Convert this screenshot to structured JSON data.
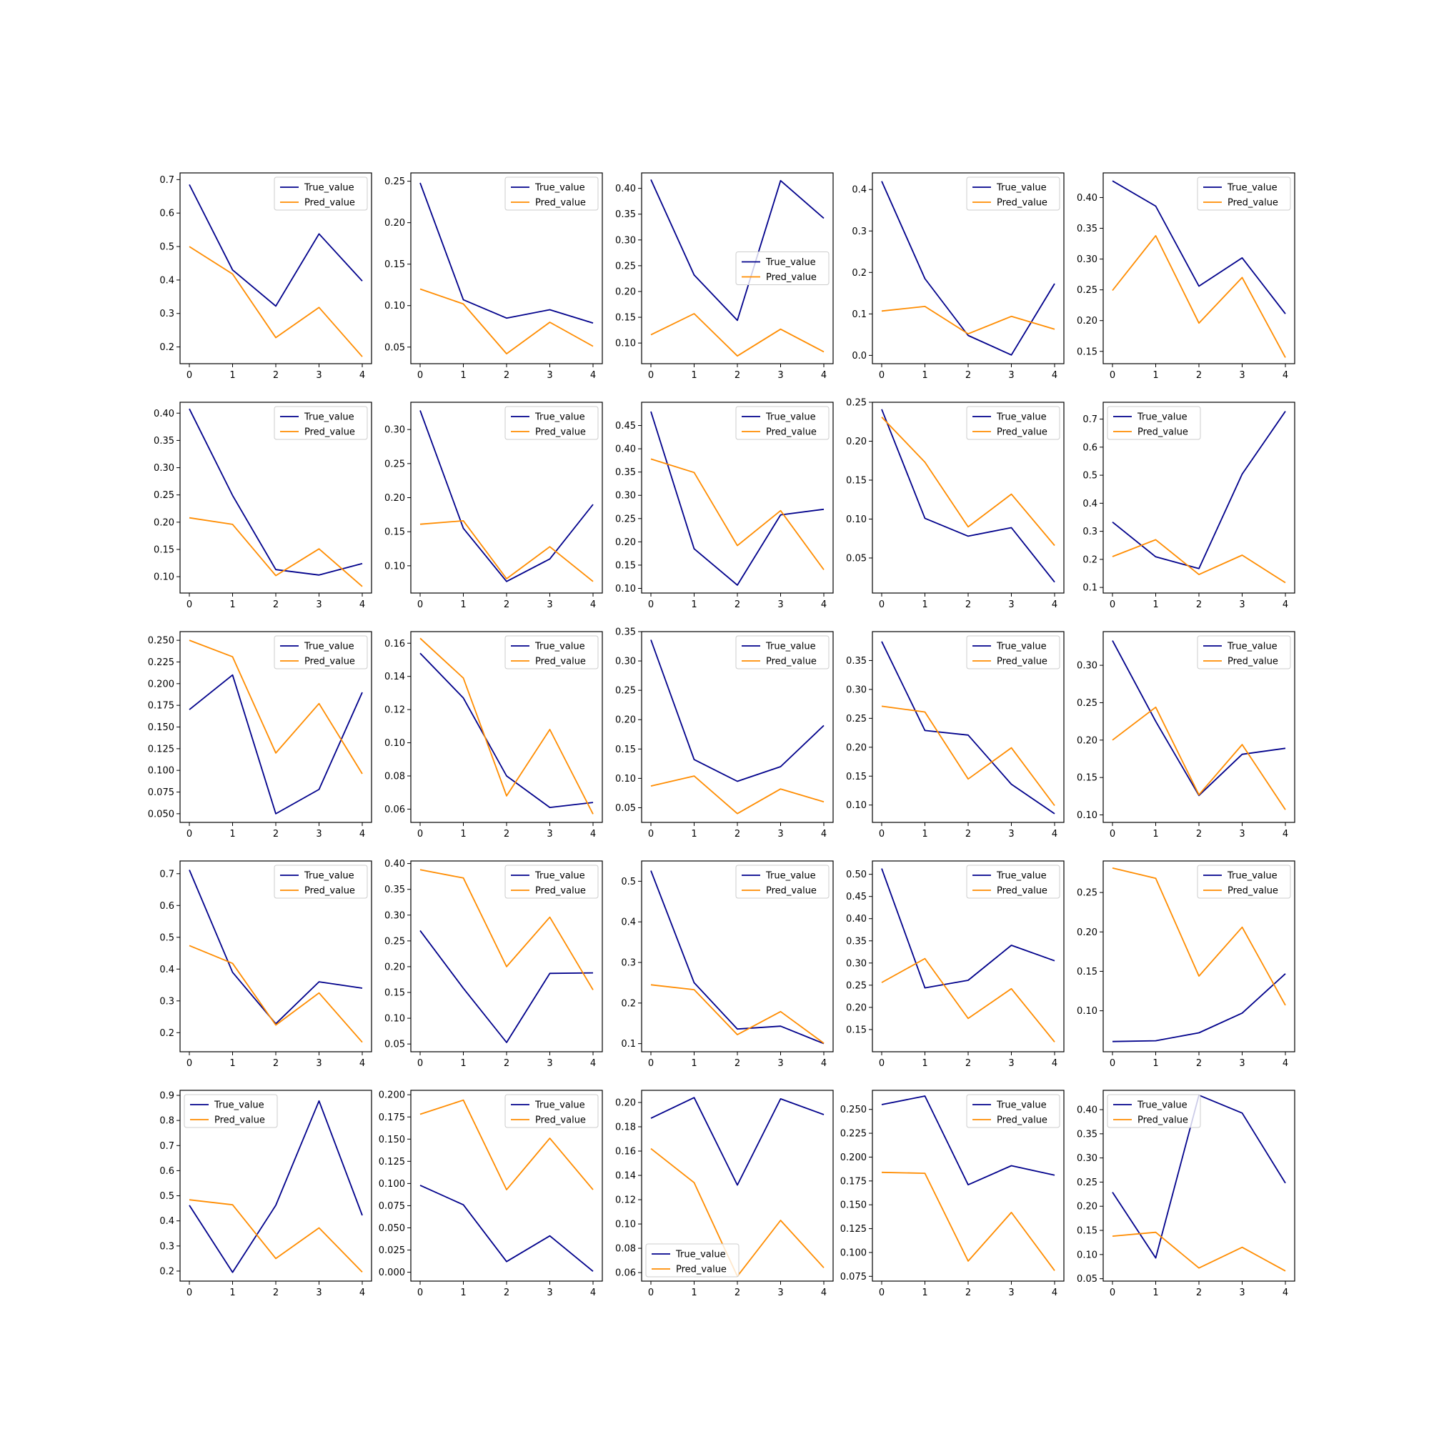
{
  "colors": {
    "true": "#00008b",
    "pred": "#ff8c00"
  },
  "legend_labels": {
    "true": "True_value",
    "pred": "Pred_value"
  },
  "chart_data": [
    {
      "type": "line",
      "x": [
        0,
        1,
        2,
        3,
        4
      ],
      "ylim": [
        0.15,
        0.72
      ],
      "yticks": [
        0.2,
        0.3,
        0.4,
        0.5,
        0.6,
        0.7
      ],
      "decimals": 1,
      "legend": "upper-right",
      "series": [
        {
          "name": "True_value",
          "values": [
            0.685,
            0.43,
            0.322,
            0.538,
            0.397
          ]
        },
        {
          "name": "Pred_value",
          "values": [
            0.5,
            0.418,
            0.228,
            0.318,
            0.171
          ]
        }
      ]
    },
    {
      "type": "line",
      "x": [
        0,
        1,
        2,
        3,
        4
      ],
      "ylim": [
        0.03,
        0.26
      ],
      "yticks": [
        0.05,
        0.1,
        0.15,
        0.2,
        0.25
      ],
      "decimals": 2,
      "legend": "upper-right",
      "series": [
        {
          "name": "True_value",
          "values": [
            0.248,
            0.107,
            0.085,
            0.095,
            0.079
          ]
        },
        {
          "name": "Pred_value",
          "values": [
            0.12,
            0.102,
            0.042,
            0.08,
            0.051
          ]
        }
      ]
    },
    {
      "type": "line",
      "x": [
        0,
        1,
        2,
        3,
        4
      ],
      "ylim": [
        0.06,
        0.43
      ],
      "yticks": [
        0.1,
        0.15,
        0.2,
        0.25,
        0.3,
        0.35,
        0.4
      ],
      "decimals": 2,
      "legend": "center-right",
      "series": [
        {
          "name": "True_value",
          "values": [
            0.417,
            0.232,
            0.144,
            0.415,
            0.342
          ]
        },
        {
          "name": "Pred_value",
          "values": [
            0.116,
            0.157,
            0.075,
            0.127,
            0.083
          ]
        }
      ]
    },
    {
      "type": "line",
      "x": [
        0,
        1,
        2,
        3,
        4
      ],
      "ylim": [
        -0.02,
        0.44
      ],
      "yticks": [
        0.0,
        0.1,
        0.2,
        0.3,
        0.4
      ],
      "decimals": 1,
      "legend": "upper-right",
      "series": [
        {
          "name": "True_value",
          "values": [
            0.42,
            0.185,
            0.048,
            0.001,
            0.173
          ]
        },
        {
          "name": "Pred_value",
          "values": [
            0.107,
            0.118,
            0.052,
            0.094,
            0.063
          ]
        }
      ]
    },
    {
      "type": "line",
      "x": [
        0,
        1,
        2,
        3,
        4
      ],
      "ylim": [
        0.13,
        0.44
      ],
      "yticks": [
        0.15,
        0.2,
        0.25,
        0.3,
        0.35,
        0.4
      ],
      "decimals": 2,
      "legend": "upper-right",
      "series": [
        {
          "name": "True_value",
          "values": [
            0.427,
            0.386,
            0.256,
            0.302,
            0.211
          ]
        },
        {
          "name": "Pred_value",
          "values": [
            0.249,
            0.338,
            0.196,
            0.27,
            0.14
          ]
        }
      ]
    },
    {
      "type": "line",
      "x": [
        0,
        1,
        2,
        3,
        4
      ],
      "ylim": [
        0.07,
        0.42
      ],
      "yticks": [
        0.1,
        0.15,
        0.2,
        0.25,
        0.3,
        0.35,
        0.4
      ],
      "decimals": 2,
      "legend": "upper-right",
      "series": [
        {
          "name": "True_value",
          "values": [
            0.408,
            0.249,
            0.113,
            0.103,
            0.124
          ]
        },
        {
          "name": "Pred_value",
          "values": [
            0.208,
            0.196,
            0.102,
            0.151,
            0.082
          ]
        }
      ]
    },
    {
      "type": "line",
      "x": [
        0,
        1,
        2,
        3,
        4
      ],
      "ylim": [
        0.06,
        0.34
      ],
      "yticks": [
        0.1,
        0.15,
        0.2,
        0.25,
        0.3
      ],
      "decimals": 2,
      "legend": "upper-right",
      "series": [
        {
          "name": "True_value",
          "values": [
            0.328,
            0.155,
            0.077,
            0.11,
            0.19
          ]
        },
        {
          "name": "Pred_value",
          "values": [
            0.161,
            0.166,
            0.081,
            0.128,
            0.077
          ]
        }
      ]
    },
    {
      "type": "line",
      "x": [
        0,
        1,
        2,
        3,
        4
      ],
      "ylim": [
        0.09,
        0.5
      ],
      "yticks": [
        0.1,
        0.15,
        0.2,
        0.25,
        0.3,
        0.35,
        0.4,
        0.45
      ],
      "decimals": 2,
      "legend": "upper-right",
      "series": [
        {
          "name": "True_value",
          "values": [
            0.48,
            0.185,
            0.107,
            0.258,
            0.27
          ]
        },
        {
          "name": "Pred_value",
          "values": [
            0.378,
            0.349,
            0.192,
            0.267,
            0.14
          ]
        }
      ]
    },
    {
      "type": "line",
      "x": [
        0,
        1,
        2,
        3,
        4
      ],
      "ylim": [
        0.005,
        0.25
      ],
      "yticks": [
        0.05,
        0.1,
        0.15,
        0.2,
        0.25
      ],
      "decimals": 2,
      "legend": "upper-right",
      "series": [
        {
          "name": "True_value",
          "values": [
            0.241,
            0.101,
            0.078,
            0.089,
            0.019
          ]
        },
        {
          "name": "Pred_value",
          "values": [
            0.231,
            0.173,
            0.09,
            0.132,
            0.066
          ]
        }
      ]
    },
    {
      "type": "line",
      "x": [
        0,
        1,
        2,
        3,
        4
      ],
      "ylim": [
        0.08,
        0.76
      ],
      "yticks": [
        0.1,
        0.2,
        0.3,
        0.4,
        0.5,
        0.6,
        0.7
      ],
      "decimals": 1,
      "legend": "upper-left",
      "series": [
        {
          "name": "True_value",
          "values": [
            0.333,
            0.209,
            0.167,
            0.504,
            0.728
          ]
        },
        {
          "name": "Pred_value",
          "values": [
            0.21,
            0.27,
            0.146,
            0.215,
            0.117
          ]
        }
      ]
    },
    {
      "type": "line",
      "x": [
        0,
        1,
        2,
        3,
        4
      ],
      "ylim": [
        0.04,
        0.26
      ],
      "yticks": [
        0.05,
        0.075,
        0.1,
        0.125,
        0.15,
        0.175,
        0.2,
        0.225,
        0.25
      ],
      "decimals": 3,
      "legend": "upper-right",
      "series": [
        {
          "name": "True_value",
          "values": [
            0.17,
            0.21,
            0.05,
            0.078,
            0.19
          ]
        },
        {
          "name": "Pred_value",
          "values": [
            0.25,
            0.231,
            0.12,
            0.177,
            0.096
          ]
        }
      ]
    },
    {
      "type": "line",
      "x": [
        0,
        1,
        2,
        3,
        4
      ],
      "ylim": [
        0.052,
        0.167
      ],
      "yticks": [
        0.06,
        0.08,
        0.1,
        0.12,
        0.14,
        0.16
      ],
      "decimals": 2,
      "legend": "upper-right",
      "series": [
        {
          "name": "True_value",
          "values": [
            0.154,
            0.127,
            0.08,
            0.061,
            0.064
          ]
        },
        {
          "name": "Pred_value",
          "values": [
            0.163,
            0.139,
            0.068,
            0.108,
            0.057
          ]
        }
      ]
    },
    {
      "type": "line",
      "x": [
        0,
        1,
        2,
        3,
        4
      ],
      "ylim": [
        0.025,
        0.35
      ],
      "yticks": [
        0.05,
        0.1,
        0.15,
        0.2,
        0.25,
        0.3,
        0.35
      ],
      "decimals": 2,
      "legend": "upper-right",
      "series": [
        {
          "name": "True_value",
          "values": [
            0.336,
            0.132,
            0.095,
            0.12,
            0.19
          ]
        },
        {
          "name": "Pred_value",
          "values": [
            0.087,
            0.104,
            0.04,
            0.082,
            0.06
          ]
        }
      ]
    },
    {
      "type": "line",
      "x": [
        0,
        1,
        2,
        3,
        4
      ],
      "ylim": [
        0.07,
        0.4
      ],
      "yticks": [
        0.1,
        0.15,
        0.2,
        0.25,
        0.3,
        0.35
      ],
      "decimals": 2,
      "legend": "upper-right",
      "series": [
        {
          "name": "True_value",
          "values": [
            0.383,
            0.229,
            0.221,
            0.136,
            0.085
          ]
        },
        {
          "name": "Pred_value",
          "values": [
            0.271,
            0.261,
            0.145,
            0.199,
            0.099
          ]
        }
      ]
    },
    {
      "type": "line",
      "x": [
        0,
        1,
        2,
        3,
        4
      ],
      "ylim": [
        0.09,
        0.345
      ],
      "yticks": [
        0.1,
        0.15,
        0.2,
        0.25,
        0.3
      ],
      "decimals": 2,
      "legend": "upper-right",
      "series": [
        {
          "name": "True_value",
          "values": [
            0.333,
            0.225,
            0.126,
            0.181,
            0.189
          ]
        },
        {
          "name": "Pred_value",
          "values": [
            0.2,
            0.244,
            0.127,
            0.194,
            0.107
          ]
        }
      ]
    },
    {
      "type": "line",
      "x": [
        0,
        1,
        2,
        3,
        4
      ],
      "ylim": [
        0.14,
        0.74
      ],
      "yticks": [
        0.2,
        0.3,
        0.4,
        0.5,
        0.6,
        0.7
      ],
      "decimals": 1,
      "legend": "upper-right",
      "series": [
        {
          "name": "True_value",
          "values": [
            0.712,
            0.39,
            0.228,
            0.36,
            0.34
          ]
        },
        {
          "name": "Pred_value",
          "values": [
            0.474,
            0.418,
            0.224,
            0.325,
            0.17
          ]
        }
      ]
    },
    {
      "type": "line",
      "x": [
        0,
        1,
        2,
        3,
        4
      ],
      "ylim": [
        0.035,
        0.405
      ],
      "yticks": [
        0.05,
        0.1,
        0.15,
        0.2,
        0.25,
        0.3,
        0.35,
        0.4
      ],
      "decimals": 2,
      "legend": "upper-right",
      "series": [
        {
          "name": "True_value",
          "values": [
            0.27,
            0.158,
            0.053,
            0.187,
            0.188
          ]
        },
        {
          "name": "Pred_value",
          "values": [
            0.388,
            0.372,
            0.2,
            0.296,
            0.155
          ]
        }
      ]
    },
    {
      "type": "line",
      "x": [
        0,
        1,
        2,
        3,
        4
      ],
      "ylim": [
        0.08,
        0.55
      ],
      "yticks": [
        0.1,
        0.2,
        0.3,
        0.4,
        0.5
      ],
      "decimals": 1,
      "legend": "upper-right",
      "series": [
        {
          "name": "True_value",
          "values": [
            0.526,
            0.25,
            0.136,
            0.143,
            0.1
          ]
        },
        {
          "name": "Pred_value",
          "values": [
            0.245,
            0.233,
            0.122,
            0.179,
            0.101
          ]
        }
      ]
    },
    {
      "type": "line",
      "x": [
        0,
        1,
        2,
        3,
        4
      ],
      "ylim": [
        0.1,
        0.53
      ],
      "yticks": [
        0.15,
        0.2,
        0.25,
        0.3,
        0.35,
        0.4,
        0.45,
        0.5
      ],
      "decimals": 2,
      "legend": "upper-right",
      "series": [
        {
          "name": "True_value",
          "values": [
            0.513,
            0.244,
            0.261,
            0.34,
            0.305
          ]
        },
        {
          "name": "Pred_value",
          "values": [
            0.256,
            0.31,
            0.175,
            0.242,
            0.122
          ]
        }
      ]
    },
    {
      "type": "line",
      "x": [
        0,
        1,
        2,
        3,
        4
      ],
      "ylim": [
        0.048,
        0.29
      ],
      "yticks": [
        0.1,
        0.15,
        0.2,
        0.25
      ],
      "decimals": 2,
      "legend": "upper-right",
      "series": [
        {
          "name": "True_value",
          "values": [
            0.061,
            0.062,
            0.072,
            0.097,
            0.147
          ]
        },
        {
          "name": "Pred_value",
          "values": [
            0.281,
            0.268,
            0.144,
            0.206,
            0.107
          ]
        }
      ]
    },
    {
      "type": "line",
      "x": [
        0,
        1,
        2,
        3,
        4
      ],
      "ylim": [
        0.16,
        0.92
      ],
      "yticks": [
        0.2,
        0.3,
        0.4,
        0.5,
        0.6,
        0.7,
        0.8,
        0.9
      ],
      "decimals": 1,
      "legend": "upper-left",
      "series": [
        {
          "name": "True_value",
          "values": [
            0.462,
            0.195,
            0.462,
            0.878,
            0.422
          ]
        },
        {
          "name": "Pred_value",
          "values": [
            0.484,
            0.464,
            0.25,
            0.372,
            0.196
          ]
        }
      ]
    },
    {
      "type": "line",
      "x": [
        0,
        1,
        2,
        3,
        4
      ],
      "ylim": [
        -0.01,
        0.205
      ],
      "yticks": [
        0.0,
        0.025,
        0.05,
        0.075,
        0.1,
        0.125,
        0.15,
        0.175,
        0.2
      ],
      "decimals": 3,
      "legend": "upper-right",
      "series": [
        {
          "name": "True_value",
          "values": [
            0.098,
            0.076,
            0.012,
            0.041,
            0.001
          ]
        },
        {
          "name": "Pred_value",
          "values": [
            0.178,
            0.194,
            0.093,
            0.151,
            0.093
          ]
        }
      ]
    },
    {
      "type": "line",
      "x": [
        0,
        1,
        2,
        3,
        4
      ],
      "ylim": [
        0.053,
        0.21
      ],
      "yticks": [
        0.06,
        0.08,
        0.1,
        0.12,
        0.14,
        0.16,
        0.18,
        0.2
      ],
      "decimals": 2,
      "legend": "lower-left",
      "series": [
        {
          "name": "True_value",
          "values": [
            0.187,
            0.204,
            0.132,
            0.203,
            0.19
          ]
        },
        {
          "name": "Pred_value",
          "values": [
            0.162,
            0.134,
            0.057,
            0.103,
            0.064
          ]
        }
      ]
    },
    {
      "type": "line",
      "x": [
        0,
        1,
        2,
        3,
        4
      ],
      "ylim": [
        0.07,
        0.27
      ],
      "yticks": [
        0.075,
        0.1,
        0.125,
        0.15,
        0.175,
        0.2,
        0.225,
        0.25
      ],
      "decimals": 3,
      "legend": "upper-right",
      "series": [
        {
          "name": "True_value",
          "values": [
            0.255,
            0.264,
            0.171,
            0.191,
            0.181
          ]
        },
        {
          "name": "Pred_value",
          "values": [
            0.184,
            0.183,
            0.091,
            0.142,
            0.081
          ]
        }
      ]
    },
    {
      "type": "line",
      "x": [
        0,
        1,
        2,
        3,
        4
      ],
      "ylim": [
        0.045,
        0.44
      ],
      "yticks": [
        0.05,
        0.1,
        0.15,
        0.2,
        0.25,
        0.3,
        0.35,
        0.4
      ],
      "decimals": 2,
      "legend": "upper-left",
      "series": [
        {
          "name": "True_value",
          "values": [
            0.229,
            0.093,
            0.43,
            0.393,
            0.248
          ]
        },
        {
          "name": "Pred_value",
          "values": [
            0.138,
            0.146,
            0.072,
            0.115,
            0.066
          ]
        }
      ]
    }
  ]
}
